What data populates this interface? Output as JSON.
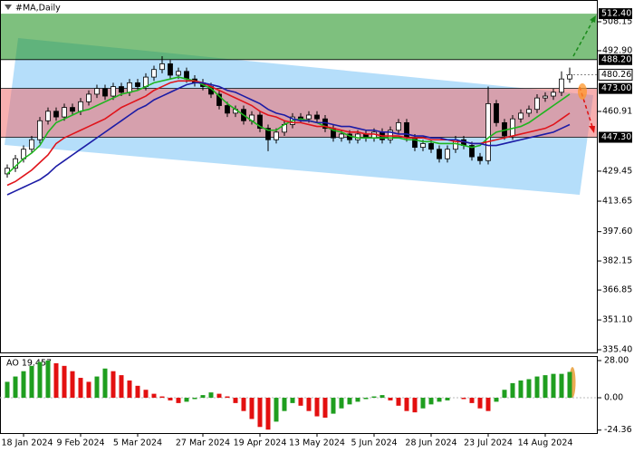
{
  "chart_data": {
    "type": "candlestick",
    "title": "#MA,Daily",
    "categories": [
      null,
      null,
      "18 Jan 2024",
      null,
      null,
      null,
      null,
      null,
      null,
      "9 Feb 2024",
      null,
      null,
      null,
      null,
      null,
      null,
      "5 Mar 2024",
      null,
      null,
      null,
      null,
      null,
      null,
      null,
      "27 Mar 2024",
      null,
      null,
      null,
      null,
      null,
      null,
      "19 Apr 2024",
      null,
      null,
      null,
      null,
      null,
      null,
      "13 May 2024",
      null,
      null,
      null,
      null,
      null,
      null,
      "5 Jun 2024",
      null,
      null,
      null,
      null,
      null,
      null,
      "28 Jun 2024",
      null,
      null,
      null,
      null,
      null,
      null,
      "23 Jul 2024",
      null,
      null,
      null,
      null,
      null,
      null,
      "14 Aug 2024",
      null,
      null,
      null
    ],
    "open": [
      428,
      431,
      436,
      441,
      446,
      456,
      461,
      458,
      463,
      461,
      466,
      470,
      473,
      469,
      474,
      471,
      476,
      474,
      479,
      483,
      486,
      480,
      482,
      478,
      476,
      474,
      470,
      464,
      460,
      462,
      456,
      459,
      452,
      446,
      450,
      454,
      458,
      457,
      459,
      457,
      452,
      447,
      449,
      446,
      449,
      447,
      450,
      446,
      451,
      455,
      447,
      442,
      444,
      441,
      436,
      441,
      446,
      443,
      437,
      435,
      465,
      455,
      448,
      457,
      460,
      462,
      468,
      469,
      471,
      478
    ],
    "high": [
      433,
      438,
      443,
      448,
      458,
      463,
      463,
      465,
      465,
      468,
      472,
      475,
      475,
      476,
      476,
      478,
      478,
      481,
      485,
      490,
      488,
      484,
      484,
      480,
      478,
      476,
      472,
      466,
      464,
      464,
      461,
      461,
      454,
      452,
      456,
      460,
      460,
      461,
      461,
      459,
      454,
      451,
      451,
      451,
      451,
      452,
      452,
      453,
      457,
      457,
      449,
      446,
      446,
      443,
      443,
      448,
      448,
      445,
      439,
      474,
      467,
      457,
      459,
      462,
      464,
      470,
      471,
      473,
      482,
      484
    ],
    "low": [
      426,
      429,
      434,
      439,
      444,
      454,
      456,
      456,
      459,
      459,
      464,
      468,
      467,
      467,
      469,
      469,
      472,
      472,
      477,
      481,
      478,
      478,
      476,
      474,
      472,
      468,
      462,
      458,
      458,
      454,
      454,
      450,
      440,
      444,
      448,
      452,
      455,
      455,
      455,
      450,
      445,
      445,
      444,
      444,
      445,
      445,
      444,
      444,
      449,
      445,
      440,
      440,
      439,
      434,
      434,
      439,
      441,
      435,
      433,
      433,
      453,
      446,
      446,
      455,
      458,
      460,
      466,
      467,
      469,
      476
    ],
    "close": [
      431,
      436,
      441,
      446,
      456,
      461,
      458,
      463,
      461,
      466,
      470,
      473,
      469,
      474,
      471,
      476,
      474,
      479,
      483,
      486,
      480,
      482,
      478,
      476,
      474,
      470,
      464,
      460,
      462,
      456,
      459,
      452,
      446,
      450,
      454,
      458,
      457,
      459,
      457,
      452,
      447,
      449,
      446,
      449,
      447,
      450,
      446,
      451,
      455,
      447,
      442,
      444,
      441,
      436,
      441,
      446,
      443,
      437,
      435,
      465,
      455,
      448,
      457,
      460,
      462,
      468,
      469,
      471,
      478,
      480.26
    ],
    "bull_color": "#ffffff",
    "bear_color": "#000000",
    "lines": [
      {
        "color": "#1fb51f",
        "values": [
          428,
          432,
          436,
          439,
          443,
          450,
          455,
          457,
          459,
          461,
          462,
          464,
          466,
          468,
          470,
          471,
          472,
          474,
          476,
          477,
          478,
          479,
          478,
          477,
          475,
          473,
          469,
          465,
          462,
          459,
          456,
          453,
          451,
          451,
          454,
          456,
          457,
          456,
          455,
          453,
          451,
          450,
          448,
          447,
          447,
          447,
          447,
          447,
          447,
          446,
          446,
          445,
          445,
          444,
          444,
          444,
          443,
          442,
          443,
          447,
          450,
          451,
          452,
          453,
          455,
          458,
          461,
          464,
          467,
          470
        ]
      },
      {
        "color": "#e0141b",
        "values": [
          422,
          424,
          427,
          430,
          434,
          438,
          444,
          447,
          449,
          451,
          453,
          455,
          457,
          460,
          463,
          465,
          467,
          469,
          472,
          474,
          476,
          477,
          477,
          477,
          476,
          474,
          472,
          470,
          468,
          466,
          464,
          461,
          459,
          458,
          456,
          455,
          455,
          454,
          453,
          453,
          452,
          451,
          450,
          450,
          449,
          449,
          448,
          448,
          448,
          447,
          447,
          447,
          446,
          446,
          446,
          445,
          445,
          444,
          444,
          445,
          446,
          447,
          448,
          449,
          450,
          451,
          452,
          454,
          457,
          460
        ]
      },
      {
        "color": "#1c1ca6",
        "values": [
          417,
          419,
          421,
          423,
          425,
          428,
          432,
          435,
          438,
          441,
          444,
          447,
          450,
          453,
          456,
          459,
          462,
          464,
          467,
          469,
          471,
          473,
          475,
          476,
          476,
          475,
          474,
          472,
          471,
          469,
          467,
          465,
          462,
          460,
          459,
          457,
          456,
          456,
          455,
          455,
          454,
          453,
          453,
          452,
          451,
          451,
          450,
          450,
          449,
          449,
          448,
          448,
          447,
          447,
          446,
          446,
          445,
          444,
          444,
          443,
          443,
          444,
          445,
          446,
          447,
          448,
          449,
          450,
          452,
          454
        ]
      }
    ],
    "ylim": [
      333.5,
      519.6
    ],
    "yticks": [
      508.15,
      {
        "value": 492.9,
        "label": "492.90"
      },
      460.91,
      429.45,
      413.65,
      {
        "value": 397.6,
        "label": "397.60"
      },
      382.15,
      366.85,
      {
        "value": 351.1,
        "label": "351.10"
      },
      {
        "value": 335.4,
        "label": "335.40"
      }
    ],
    "levels": [
      {
        "value": 512.4,
        "label": "512.40"
      },
      {
        "value": 488.2,
        "label": "488.20"
      },
      {
        "value": 473,
        "label": "473.00"
      },
      {
        "value": 447.3,
        "label": "447.30"
      }
    ],
    "band_colors": [
      "rgba(40,150,40,0.6)",
      "rgba(240,110,110,0.55)"
    ],
    "last_price": {
      "value": 480.26,
      "label": "480.26"
    },
    "ao": {
      "label": "AO 19.457",
      "up_color": "#1f9e1f",
      "down_color": "#e31010",
      "values": [
        12,
        16,
        20,
        24,
        27,
        28,
        26,
        24,
        20,
        15,
        12,
        16,
        22,
        20,
        17,
        13,
        9,
        6,
        3,
        1,
        -2,
        -4,
        -3,
        -1,
        2,
        4,
        3,
        1,
        -4,
        -10,
        -16,
        -22,
        -24,
        -18,
        -10,
        -4,
        -6,
        -10,
        -14,
        -15,
        -12,
        -8,
        -5,
        -3,
        -1,
        1,
        2,
        -2,
        -6,
        -10,
        -11,
        -8,
        -5,
        -3,
        -2,
        0,
        -1,
        -4,
        -8,
        -10,
        -3,
        6,
        11,
        13,
        14,
        16,
        17,
        18,
        18,
        19.457
      ],
      "ylim": [
        -26.6,
        31.4
      ],
      "yticks": [
        {
          "value": 28,
          "label": "28.00"
        },
        {
          "value": 0,
          "label": "0.00"
        },
        -24.36
      ]
    }
  }
}
